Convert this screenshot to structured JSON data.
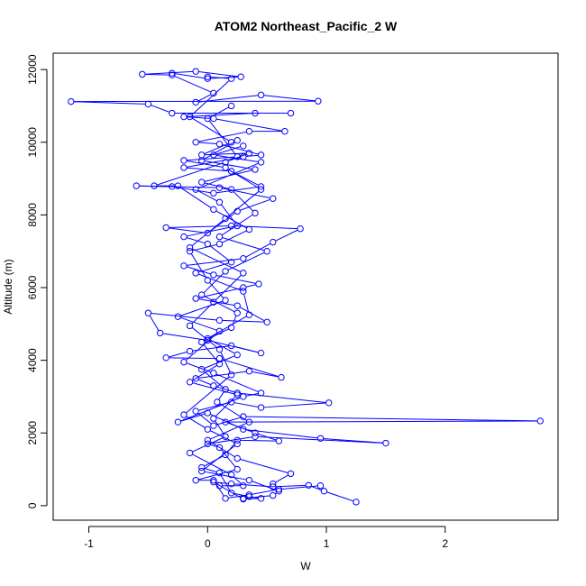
{
  "chart_data": {
    "type": "scatter",
    "title": "ATOM2 Northeast_Pacific_2 W",
    "xlabel": "W",
    "ylabel": "Altitude (m)",
    "xlim": [
      -1.3,
      2.95
    ],
    "ylim": [
      -400,
      12450
    ],
    "xticks": [
      -1,
      0,
      1,
      2
    ],
    "yticks": [
      0,
      2000,
      4000,
      6000,
      8000,
      10000,
      12000
    ],
    "grid": false,
    "legend": "none",
    "color": "#0000ff",
    "series": [
      {
        "marker": "open-circle",
        "connected": true,
        "points": [
          [
            1.25,
            100
          ],
          [
            0.98,
            400
          ],
          [
            0.85,
            560
          ],
          [
            0.55,
            520
          ],
          [
            0.2,
            600
          ],
          [
            0.05,
            650
          ],
          [
            0.3,
            180
          ],
          [
            0.45,
            200
          ],
          [
            0.35,
            250
          ],
          [
            0.2,
            350
          ],
          [
            0.1,
            900
          ],
          [
            -0.05,
            1050
          ],
          [
            0.15,
            1400
          ],
          [
            0.25,
            1800
          ],
          [
            0.6,
            1780
          ],
          [
            0.4,
            2000
          ],
          [
            0.15,
            2300
          ],
          [
            2.8,
            2330
          ],
          [
            0.3,
            2450
          ],
          [
            0.05,
            2200
          ],
          [
            -0.1,
            2600
          ],
          [
            0.2,
            2850
          ],
          [
            0.45,
            2700
          ],
          [
            1.02,
            2830
          ],
          [
            0.25,
            3100
          ],
          [
            0.05,
            3300
          ],
          [
            -0.1,
            3500
          ],
          [
            0.35,
            3700
          ],
          [
            0.62,
            3530
          ],
          [
            0.1,
            4050
          ],
          [
            -0.35,
            4070
          ],
          [
            -0.15,
            4250
          ],
          [
            0.2,
            4400
          ],
          [
            0.45,
            4200
          ],
          [
            0.0,
            4550
          ],
          [
            -0.4,
            4750
          ],
          [
            -0.5,
            5300
          ],
          [
            0.1,
            5100
          ],
          [
            0.5,
            5050
          ],
          [
            0.25,
            5500
          ],
          [
            -0.1,
            5700
          ],
          [
            0.3,
            6000
          ],
          [
            0.43,
            6100
          ],
          [
            0.05,
            6350
          ],
          [
            -0.2,
            6600
          ],
          [
            0.3,
            6800
          ],
          [
            0.55,
            7250
          ],
          [
            0.78,
            7620
          ],
          [
            0.2,
            7700
          ],
          [
            -0.35,
            7650
          ],
          [
            0.0,
            7500
          ],
          [
            0.25,
            8100
          ],
          [
            0.55,
            8450
          ],
          [
            0.1,
            8750
          ],
          [
            -0.6,
            8800
          ],
          [
            -0.3,
            8780
          ],
          [
            0.05,
            8600
          ],
          [
            0.45,
            8780
          ],
          [
            0.2,
            9200
          ],
          [
            -0.2,
            9300
          ],
          [
            0.3,
            9600
          ],
          [
            0.45,
            9650
          ],
          [
            0.1,
            9950
          ],
          [
            -0.1,
            10000
          ],
          [
            0.35,
            10300
          ],
          [
            0.65,
            10300
          ],
          [
            0.05,
            10650
          ],
          [
            -0.2,
            10700
          ],
          [
            0.4,
            10800
          ],
          [
            0.7,
            10800
          ],
          [
            -0.3,
            10800
          ],
          [
            -0.5,
            11050
          ],
          [
            -1.15,
            11120
          ],
          [
            0.93,
            11130
          ],
          [
            0.45,
            11300
          ],
          [
            -0.1,
            11100
          ],
          [
            0.05,
            11350
          ],
          [
            -0.3,
            11850
          ],
          [
            -0.55,
            11870
          ],
          [
            -0.1,
            11950
          ],
          [
            0.28,
            11800
          ],
          [
            0.0,
            11750
          ],
          [
            -0.3,
            11900
          ]
        ]
      },
      {
        "marker": "open-circle",
        "connected": true,
        "points": [
          [
            0.95,
            550
          ],
          [
            0.6,
            450
          ],
          [
            0.35,
            300
          ],
          [
            0.15,
            200
          ],
          [
            0.05,
            700
          ],
          [
            -0.1,
            700
          ],
          [
            0.25,
            1000
          ],
          [
            0.1,
            1600
          ],
          [
            0.0,
            1700
          ],
          [
            0.4,
            1900
          ],
          [
            1.5,
            1720
          ],
          [
            0.95,
            1850
          ],
          [
            0.3,
            2100
          ],
          [
            0.0,
            2550
          ],
          [
            -0.25,
            2300
          ],
          [
            0.3,
            3000
          ],
          [
            0.45,
            3100
          ],
          [
            0.05,
            3650
          ],
          [
            -0.2,
            3950
          ],
          [
            0.1,
            4800
          ],
          [
            -0.25,
            5200
          ],
          [
            0.15,
            5650
          ],
          [
            0.0,
            6200
          ],
          [
            -0.15,
            7000
          ],
          [
            0.1,
            7200
          ],
          [
            0.35,
            7600
          ],
          [
            0.05,
            8150
          ],
          [
            -0.25,
            8800
          ],
          [
            -0.45,
            8800
          ],
          [
            0.15,
            9450
          ],
          [
            0.35,
            9700
          ],
          [
            -0.05,
            9650
          ],
          [
            0.2,
            10000
          ],
          [
            -0.15,
            10700
          ],
          [
            0.2,
            11750
          ],
          [
            0.0,
            11800
          ]
        ]
      },
      {
        "marker": "open-circle",
        "connected": true,
        "points": [
          [
            0.1,
            550
          ],
          [
            0.3,
            550
          ],
          [
            0.2,
            850
          ],
          [
            -0.15,
            1450
          ],
          [
            0.15,
            1900
          ],
          [
            0.05,
            2400
          ],
          [
            0.25,
            3050
          ],
          [
            -0.15,
            3400
          ],
          [
            0.1,
            3900
          ],
          [
            -0.05,
            4500
          ],
          [
            0.2,
            4900
          ],
          [
            0.25,
            5300
          ],
          [
            -0.05,
            5800
          ],
          [
            0.15,
            6450
          ],
          [
            0.5,
            7000
          ],
          [
            0.1,
            7400
          ],
          [
            0.4,
            8050
          ],
          [
            0.2,
            8700
          ],
          [
            -0.05,
            8900
          ],
          [
            0.4,
            9250
          ],
          [
            -0.05,
            9500
          ],
          [
            0.25,
            10050
          ]
        ]
      },
      {
        "marker": "open-circle",
        "connected": true,
        "points": [
          [
            0.55,
            600
          ],
          [
            0.7,
            880
          ],
          [
            0.25,
            1300
          ],
          [
            0.0,
            1800
          ],
          [
            0.35,
            2300
          ],
          [
            0.08,
            2850
          ],
          [
            0.15,
            3200
          ],
          [
            -0.05,
            3750
          ],
          [
            0.25,
            4150
          ],
          [
            0.0,
            4600
          ],
          [
            0.35,
            5250
          ],
          [
            0.3,
            5900
          ],
          [
            -0.1,
            6400
          ],
          [
            0.2,
            6700
          ],
          [
            0.0,
            7200
          ],
          [
            -0.2,
            7400
          ],
          [
            0.25,
            7700
          ],
          [
            0.1,
            8350
          ],
          [
            -0.1,
            8700
          ],
          [
            0.45,
            9450
          ],
          [
            0.05,
            9650
          ],
          [
            0.3,
            9900
          ]
        ]
      },
      {
        "marker": "open-circle",
        "connected": true,
        "points": [
          [
            0.3,
            200
          ],
          [
            0.55,
            280
          ],
          [
            0.6,
            400
          ],
          [
            0.35,
            700
          ],
          [
            -0.05,
            950
          ],
          [
            0.25,
            1700
          ],
          [
            0.0,
            2100
          ],
          [
            -0.2,
            2500
          ],
          [
            0.2,
            3600
          ],
          [
            0.1,
            4300
          ],
          [
            -0.15,
            4950
          ],
          [
            0.05,
            5600
          ],
          [
            0.3,
            6400
          ],
          [
            -0.15,
            7100
          ],
          [
            0.15,
            7900
          ],
          [
            0.45,
            8700
          ],
          [
            0.15,
            9300
          ],
          [
            -0.2,
            9500
          ],
          [
            0.25,
            9600
          ],
          [
            0.0,
            10650
          ],
          [
            0.2,
            11000
          ]
        ]
      }
    ]
  }
}
